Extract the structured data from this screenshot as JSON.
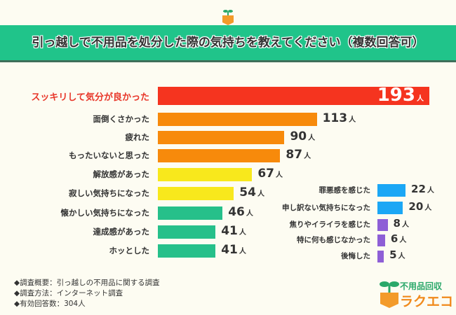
{
  "title": "引っ越しで不用品を処分した際の気持ちを教えてください（複数回答可）",
  "unit": "人",
  "colors": {
    "header": "#20c48a",
    "background": "#fdfcf2"
  },
  "chart_data": {
    "type": "bar",
    "orientation": "horizontal",
    "title": "引っ越しで不用品を処分した際の気持ちを教えてください（複数回答可）",
    "unit": "人",
    "categories": [
      "スッキリして気分が良かった",
      "面倒くさかった",
      "疲れた",
      "もったいないと思った",
      "解放感があった",
      "寂しい気持ちになった",
      "懐かしい気持ちになった",
      "達成感があった",
      "ホッとした",
      "罪悪感を感じた",
      "申し訳ない気持ちになった",
      "焦りやイライラを感じた",
      "特に何も感じなかった",
      "後悔した"
    ],
    "values": [
      193,
      113,
      90,
      87,
      67,
      54,
      46,
      41,
      41,
      22,
      20,
      8,
      6,
      5
    ],
    "bar_colors": [
      "#f5341f",
      "#f78a0b",
      "#f78a0b",
      "#f78a0b",
      "#f8e81c",
      "#f8e81c",
      "#26c08a",
      "#26c08a",
      "#26c08a",
      "#1ba7f5",
      "#1ba7f5",
      "#8e5fd6",
      "#8e5fd6",
      "#8e5fd6"
    ],
    "grid": false
  },
  "notes": [
    "◆調査概要：引っ越しの不用品に関する調査",
    "◆調査方法：インターネット調査",
    "◆有効回答数：304人"
  ],
  "logo": {
    "line1": "不用品回収",
    "line2": "ラクエコ"
  }
}
